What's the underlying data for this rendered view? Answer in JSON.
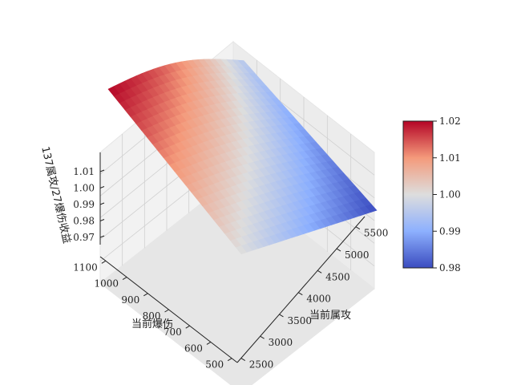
{
  "chart_data": {
    "type": "surface",
    "title": "",
    "xlabel": "当前属攻",
    "ylabel": "当前爆伤",
    "zlabel": "137属攻/27爆伤收益",
    "x_ticks": [
      "2500",
      "3000",
      "3500",
      "4000",
      "4500",
      "5000",
      "5500"
    ],
    "y_ticks": [
      "500",
      "600",
      "700",
      "800",
      "900",
      "1000",
      "1100"
    ],
    "z_ticks": [
      "0.97",
      "0.98",
      "0.99",
      "1.00",
      "1.01"
    ],
    "xlim": [
      2500,
      5800
    ],
    "ylim": [
      500,
      1100
    ],
    "zlim": [
      0.97,
      1.015
    ],
    "colormap": "coolwarm",
    "colorbar": {
      "ticks": [
        "0.98",
        "0.99",
        "1.00",
        "1.01",
        "1.02"
      ],
      "range": [
        0.98,
        1.02
      ]
    },
    "corner_values": [
      {
        "x": 2500,
        "y": 500,
        "z": 1.0
      },
      {
        "x": 2500,
        "y": 1100,
        "z": 1.02
      },
      {
        "x": 5800,
        "y": 500,
        "z": 0.98
      },
      {
        "x": 5800,
        "y": 1100,
        "z": 0.995
      }
    ]
  }
}
